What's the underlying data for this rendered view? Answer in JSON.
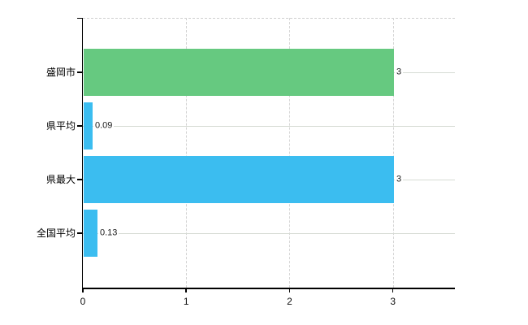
{
  "chart_data": {
    "type": "bar",
    "orientation": "horizontal",
    "title": "",
    "xlabel": "",
    "ylabel": "",
    "categories": [
      "盛岡市",
      "県平均",
      "県最大",
      "全国平均"
    ],
    "values": [
      3,
      0.09,
      3,
      0.13
    ],
    "value_labels": [
      "3",
      "0.09",
      "3",
      "0.13"
    ],
    "bar_colors": [
      "#66c980",
      "#3bbdf0",
      "#3bbdf0",
      "#3bbdf0"
    ],
    "x_ticks": [
      0,
      1,
      2,
      3
    ],
    "x_tick_labels": [
      "0",
      "1",
      "2",
      "3"
    ],
    "xlim": [
      0,
      3.6
    ],
    "legend": null,
    "grid": {
      "vertical_dashed": true,
      "top_border_dashed": true,
      "row_center_lines": true
    },
    "colors": {
      "axis": "#000000",
      "vertical_gridline": "#d4d4d4",
      "row_line": "#d6dbd4",
      "top_border": "#cfcfcf",
      "value_label_text": "#1a1a1a",
      "category_label_text": "#000000",
      "background": "#ffffff"
    }
  }
}
